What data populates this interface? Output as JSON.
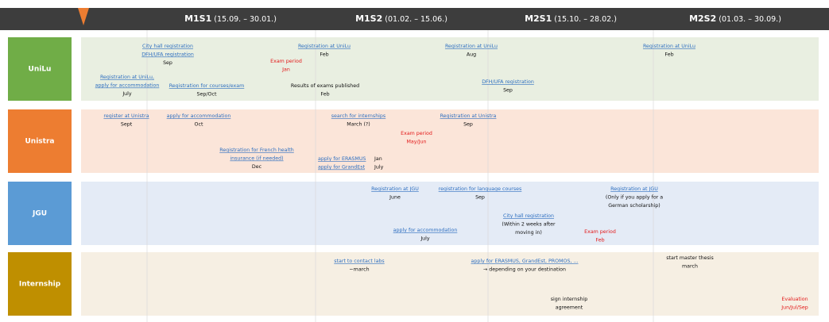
{
  "header": {
    "columns": [
      {
        "name": "M1S1",
        "dates": "(15.09. – 30.01.)"
      },
      {
        "name": "M1S2",
        "dates": "(01.02. – 15.06.)"
      },
      {
        "name": "M2S1",
        "dates": "(15.10. – 28.02.)"
      },
      {
        "name": "M2S2",
        "dates": "(01.03. – 30.09.)"
      }
    ]
  },
  "rows": [
    {
      "label": "UniLu",
      "items": [
        {
          "lines": [
            "City hall registration",
            "DFH/UFA registration",
            "Sep"
          ]
        },
        {
          "lines": [
            "Registration at UniLu",
            "Feb"
          ]
        },
        {
          "lines": [
            "Exam period",
            "Jan"
          ]
        },
        {
          "lines": [
            "Registration at UniLu,",
            "apply for accommodation",
            "July"
          ]
        },
        {
          "lines": [
            "Registration for courses/exam",
            "Sep/Oct"
          ]
        },
        {
          "lines": [
            "Results of exams published",
            "Feb"
          ]
        },
        {
          "lines": [
            "Registration at UniLu",
            "Aug"
          ]
        },
        {
          "lines": [
            "DFH/UFA registration",
            "Sep"
          ]
        },
        {
          "lines": [
            "Registration at UniLu",
            "Feb"
          ]
        }
      ]
    },
    {
      "label": "Unistra",
      "items": [
        {
          "lines": [
            "register at Unistra",
            "Sept"
          ]
        },
        {
          "lines": [
            "apply for accommodation",
            "Oct"
          ]
        },
        {
          "lines": [
            "search for internships",
            "March (?)"
          ]
        },
        {
          "lines": [
            "Registration at Unistra",
            "Sep"
          ]
        },
        {
          "lines": [
            "Exam period",
            "May/Jun"
          ]
        },
        {
          "lines": [
            "Registration for French health",
            "insurance (if needed)",
            "Dec"
          ]
        },
        {
          "lines": [
            "apply for ERASMUS",
            "apply for GrandEst"
          ]
        },
        {
          "lines": [
            "Jan",
            "July"
          ]
        }
      ]
    },
    {
      "label": "JGU",
      "items": [
        {
          "lines": [
            "Registration at JGU",
            "June"
          ]
        },
        {
          "lines": [
            "registration for language courses",
            "Sep"
          ]
        },
        {
          "lines": [
            "Registration at JGU",
            "(Only if you apply for a",
            "German scholarship)"
          ]
        },
        {
          "lines": [
            "City hall registration",
            "(Within 2 weeks after",
            "moving in)"
          ]
        },
        {
          "lines": [
            "apply for accommodation",
            "July"
          ]
        },
        {
          "lines": [
            "Exam period",
            "Feb"
          ]
        }
      ]
    },
    {
      "label": "Internship",
      "items": [
        {
          "lines": [
            "start to contact labs",
            "~march"
          ]
        },
        {
          "lines": [
            "apply for ERASMUS, GrandEst, PROMOS, ...",
            "→ depending on your destination"
          ]
        },
        {
          "lines": [
            "start master thesis",
            "march"
          ]
        },
        {
          "lines": [
            "sign internship",
            "agreement"
          ]
        },
        {
          "lines": [
            "Evaluation",
            "Jun/Jul/Sep"
          ]
        }
      ]
    }
  ]
}
